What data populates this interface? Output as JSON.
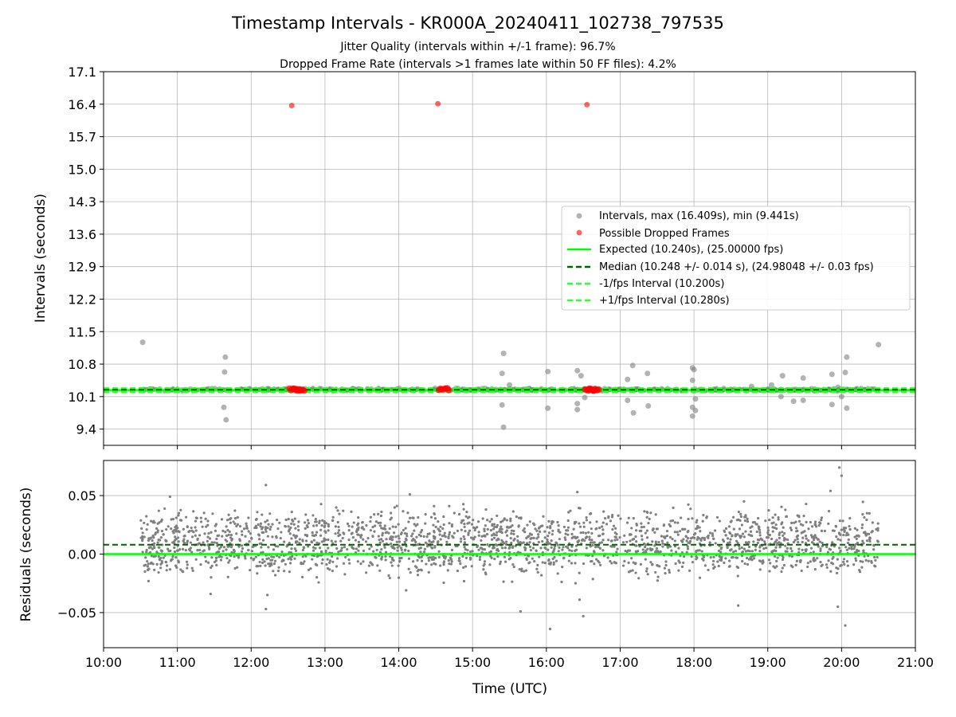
{
  "chart_data": [
    {
      "type": "scatter",
      "title": "Timestamp Intervals - KR000A_20240411_102738_797535",
      "subtitle_lines": [
        "Jitter Quality (intervals within +/-1 frame): 96.7%",
        "Dropped Frame Rate (intervals >1 frames late within 50 FF files): 4.2%"
      ],
      "ylabel": "Intervals (seconds)",
      "xlabel": "",
      "xlim_hours": [
        10.0,
        21.0
      ],
      "ylim": [
        9.05,
        17.1
      ],
      "yticks": [
        "17.1",
        "16.4",
        "15.7",
        "15.0",
        "14.3",
        "13.6",
        "12.9",
        "12.2",
        "11.5",
        "10.8",
        "10.1",
        "9.4"
      ],
      "ytick_values": [
        17.1,
        16.4,
        15.7,
        15.0,
        14.3,
        13.6,
        12.9,
        12.2,
        11.5,
        10.8,
        10.1,
        9.4
      ],
      "grid": true,
      "legend_position": "upper-right",
      "legend": [
        "Intervals, max (16.409s), min (9.441s)",
        "Possible Dropped Frames",
        "Expected (10.240s), (25.00000 fps)",
        "Median (10.248 +/- 0.014 s), (24.98048 +/- 0.03 fps)",
        "-1/fps Interval (10.200s)",
        "+1/fps Interval (10.280s)"
      ],
      "colors": {
        "intervals": "#808080",
        "dropped": "#ff0000",
        "expected": "#00ff00",
        "median": "#006400",
        "fps_bounds": "#32ff32"
      },
      "lines": {
        "expected": 10.24,
        "median": 10.248,
        "minus_fps": 10.2,
        "plus_fps": 10.28
      },
      "intervals_outliers": [
        {
          "x": 10.53,
          "y": 11.27
        },
        {
          "x": 11.65,
          "y": 10.95
        },
        {
          "x": 11.64,
          "y": 10.63
        },
        {
          "x": 11.63,
          "y": 9.87
        },
        {
          "x": 11.66,
          "y": 9.6
        },
        {
          "x": 15.42,
          "y": 11.03
        },
        {
          "x": 15.4,
          "y": 10.6
        },
        {
          "x": 15.5,
          "y": 10.35
        },
        {
          "x": 15.4,
          "y": 9.92
        },
        {
          "x": 15.42,
          "y": 9.44
        },
        {
          "x": 16.02,
          "y": 10.64
        },
        {
          "x": 16.02,
          "y": 9.85
        },
        {
          "x": 16.42,
          "y": 10.66
        },
        {
          "x": 16.42,
          "y": 9.95
        },
        {
          "x": 16.42,
          "y": 9.82
        },
        {
          "x": 16.47,
          "y": 10.55
        },
        {
          "x": 16.52,
          "y": 10.08
        },
        {
          "x": 17.17,
          "y": 10.77
        },
        {
          "x": 17.1,
          "y": 10.47
        },
        {
          "x": 17.1,
          "y": 10.02
        },
        {
          "x": 17.18,
          "y": 9.75
        },
        {
          "x": 17.37,
          "y": 10.6
        },
        {
          "x": 17.38,
          "y": 9.9
        },
        {
          "x": 17.98,
          "y": 10.72
        },
        {
          "x": 18.0,
          "y": 10.68
        },
        {
          "x": 17.98,
          "y": 10.45
        },
        {
          "x": 18.02,
          "y": 10.05
        },
        {
          "x": 17.98,
          "y": 9.87
        },
        {
          "x": 18.02,
          "y": 9.8
        },
        {
          "x": 17.98,
          "y": 9.68
        },
        {
          "x": 18.78,
          "y": 10.32
        },
        {
          "x": 19.05,
          "y": 10.35
        },
        {
          "x": 19.2,
          "y": 10.55
        },
        {
          "x": 19.18,
          "y": 10.1
        },
        {
          "x": 19.48,
          "y": 10.5
        },
        {
          "x": 19.35,
          "y": 10.0
        },
        {
          "x": 19.48,
          "y": 10.02
        },
        {
          "x": 19.87,
          "y": 10.58
        },
        {
          "x": 19.87,
          "y": 9.93
        },
        {
          "x": 19.95,
          "y": 10.3
        },
        {
          "x": 20.07,
          "y": 10.95
        },
        {
          "x": 20.05,
          "y": 10.62
        },
        {
          "x": 20.0,
          "y": 10.1
        },
        {
          "x": 20.07,
          "y": 9.85
        },
        {
          "x": 20.5,
          "y": 11.22
        }
      ],
      "dropped_frames": [
        {
          "x": 12.55,
          "y": 16.37
        },
        {
          "x": 14.53,
          "y": 16.41
        },
        {
          "x": 16.55,
          "y": 16.39
        },
        {
          "x": 12.6,
          "y": 10.25
        },
        {
          "x": 12.66,
          "y": 10.25
        },
        {
          "x": 14.62,
          "y": 10.26
        },
        {
          "x": 16.6,
          "y": 10.25
        },
        {
          "x": 16.65,
          "y": 10.25
        }
      ],
      "dense_band": {
        "x_range": [
          10.5,
          20.5
        ],
        "y_center": 10.25,
        "y_spread": 0.03
      }
    },
    {
      "type": "scatter",
      "title": "",
      "ylabel": "Residuals (seconds)",
      "xlabel": "Time (UTC)",
      "xlim_hours": [
        10.0,
        21.0
      ],
      "ylim": [
        -0.08,
        0.08
      ],
      "yticks": [
        "0.05",
        "0.00",
        "−0.05"
      ],
      "ytick_values": [
        0.05,
        0.0,
        -0.05
      ],
      "xticks": [
        "10:00",
        "11:00",
        "12:00",
        "13:00",
        "14:00",
        "15:00",
        "16:00",
        "17:00",
        "18:00",
        "19:00",
        "20:00",
        "21:00"
      ],
      "grid": true,
      "colors": {
        "points": "#7f7f7f",
        "zero_line": "#00ff00",
        "median_line": "#006400"
      },
      "lines": {
        "zero": 0.0,
        "median": 0.008
      },
      "notable_points": [
        {
          "x": 19.97,
          "y": 0.074
        },
        {
          "x": 20.0,
          "y": 0.067
        },
        {
          "x": 19.85,
          "y": 0.054
        },
        {
          "x": 12.2,
          "y": 0.059
        },
        {
          "x": 16.42,
          "y": 0.053
        },
        {
          "x": 14.15,
          "y": 0.051
        },
        {
          "x": 10.9,
          "y": 0.049
        },
        {
          "x": 16.05,
          "y": -0.064
        },
        {
          "x": 20.05,
          "y": -0.061
        },
        {
          "x": 16.5,
          "y": -0.053
        },
        {
          "x": 15.65,
          "y": -0.049
        },
        {
          "x": 12.2,
          "y": -0.047
        },
        {
          "x": 19.95,
          "y": -0.045
        },
        {
          "x": 18.6,
          "y": -0.044
        },
        {
          "x": 16.45,
          "y": -0.039
        },
        {
          "x": 12.22,
          "y": -0.035
        },
        {
          "x": 11.45,
          "y": -0.034
        },
        {
          "x": 14.1,
          "y": -0.031
        }
      ],
      "band": {
        "x_range": [
          10.5,
          20.5
        ],
        "y_range": [
          -0.03,
          0.045
        ],
        "cluster_centers": [
          0.0,
          0.02
        ]
      }
    }
  ]
}
